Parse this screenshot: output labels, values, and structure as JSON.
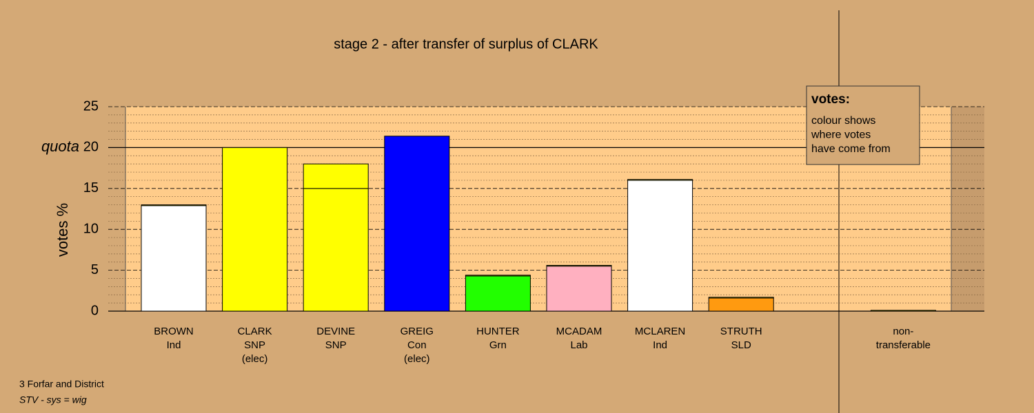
{
  "chart_data": {
    "type": "bar",
    "title": "stage 2 - after transfer of surplus of CLARK",
    "y_label": "votes %",
    "labels": [
      [
        "BROWN",
        "Ind"
      ],
      [
        "CLARK",
        "SNP",
        "(elec)"
      ],
      [
        "DEVINE",
        "SNP"
      ],
      [
        "GREIG",
        "Con",
        "(elec)"
      ],
      [
        "HUNTER",
        "Grn"
      ],
      [
        "MCADAM",
        "Lab"
      ],
      [
        "MCLAREN",
        "Ind"
      ],
      [
        "STRUTH",
        "SLD"
      ],
      [
        "non-",
        "transferable"
      ]
    ],
    "values": [
      12.9,
      20,
      15,
      21.4,
      4.3,
      5.5,
      16,
      1.6,
      null
    ],
    "colors": [
      "#ffffff",
      "#ffff00",
      "#ffff00",
      "#0000ff",
      "#22ff00",
      "#ffb0c0",
      "#ffffff",
      "#ff9a10",
      "#ffffff"
    ],
    "transfers": [
      0.1,
      null,
      3,
      null,
      0.1,
      0.1,
      0.1,
      0.1,
      0.1
    ],
    "transfer_color": "#ffff00",
    "quota": 20,
    "quota_label": "quota",
    "ylim": [
      0,
      25
    ],
    "yticks": [
      0,
      5,
      10,
      15,
      20,
      25
    ],
    "minor_yticks": [
      1,
      2,
      3,
      4,
      6,
      7,
      8,
      9,
      11,
      12,
      13,
      14,
      16,
      17,
      18,
      19,
      21,
      22,
      23,
      24
    ],
    "legend": {
      "title": "votes:",
      "lines": [
        "colour shows",
        "where votes",
        "have come from"
      ]
    },
    "footer": [
      "3 Forfar and District",
      "STV - sys = wig"
    ]
  }
}
